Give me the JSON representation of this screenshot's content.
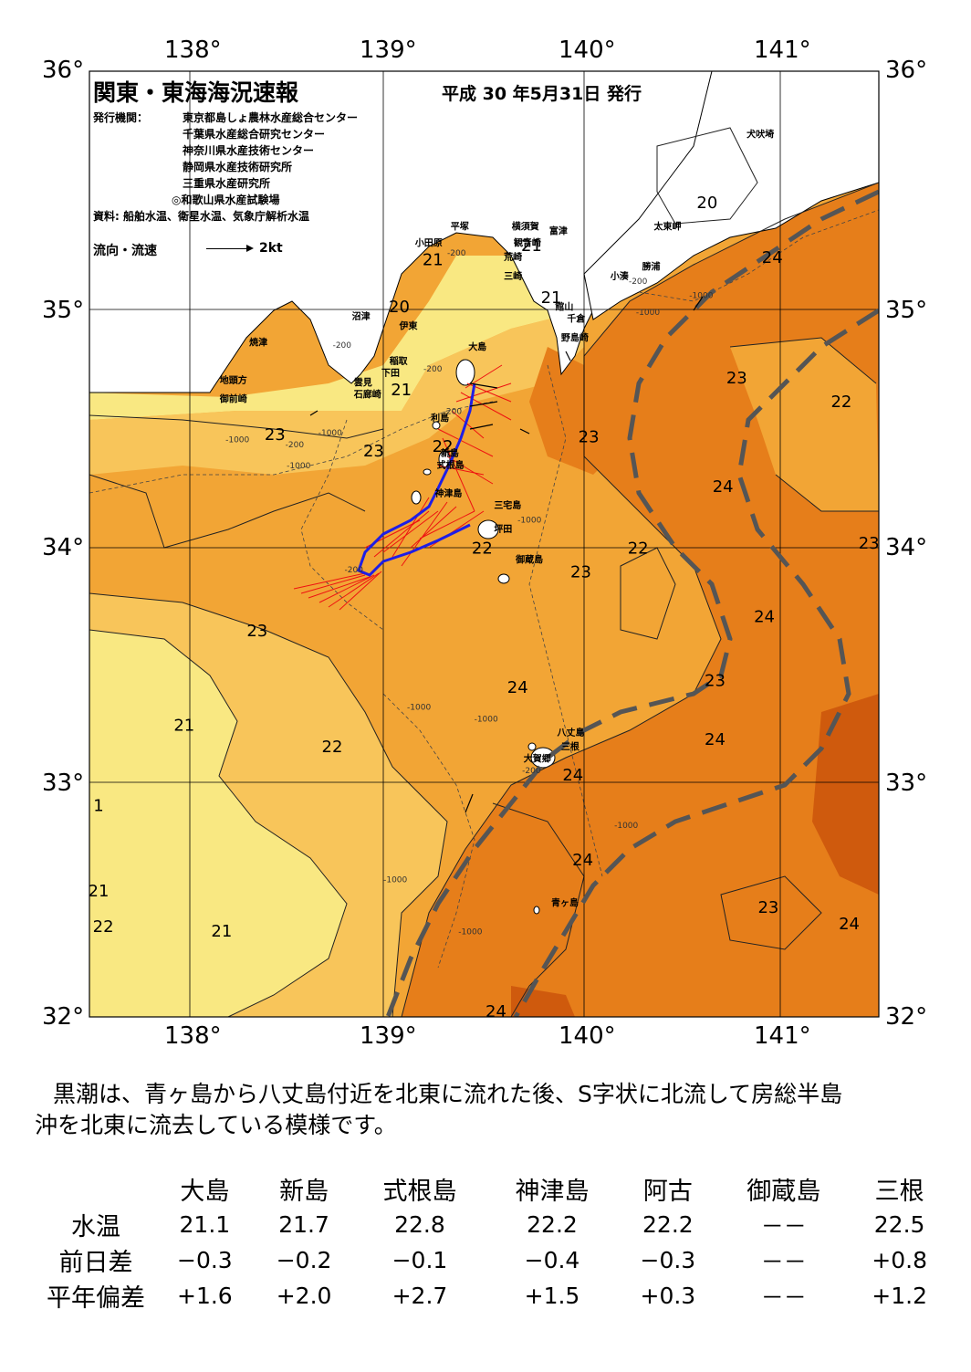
{
  "title": "関東・東海海況速報",
  "issue_date": "平成 30 年5月31日 発行",
  "issuers_label": "発行機関：",
  "issuers": [
    "東京都島しょ農林水産総合センター",
    "千葉県水産総合研究センター",
    "神奈川県水産技術センター",
    "静岡県水産技術研究所",
    "三重県水産研究所",
    "◎和歌山県水産試験場"
  ],
  "sources": "資料: 船舶水温、衛星水温、気象庁解析水温",
  "current_legend": {
    "label": "流向・流速",
    "value": "2kt"
  },
  "axes": {
    "lon_labels": [
      "138°",
      "139°",
      "140°",
      "141°"
    ],
    "lat_labels": [
      "36°",
      "35°",
      "34°",
      "33°",
      "32°"
    ]
  },
  "places": [
    {
      "name": "犬吠埼",
      "lon": 140.83,
      "lat": 35.72
    },
    {
      "name": "太東岬",
      "lon": 140.36,
      "lat": 35.33
    },
    {
      "name": "勝浦",
      "lon": 140.3,
      "lat": 35.16
    },
    {
      "name": "小湊",
      "lon": 140.14,
      "lat": 35.12
    },
    {
      "name": "富津",
      "lon": 139.83,
      "lat": 35.31
    },
    {
      "name": "平塚",
      "lon": 139.33,
      "lat": 35.33
    },
    {
      "name": "横須賀",
      "lon": 139.64,
      "lat": 35.33
    },
    {
      "name": "観音崎",
      "lon": 139.65,
      "lat": 35.26
    },
    {
      "name": "小田原",
      "lon": 139.15,
      "lat": 35.26
    },
    {
      "name": "荒崎",
      "lon": 139.6,
      "lat": 35.2
    },
    {
      "name": "三崎",
      "lon": 139.6,
      "lat": 35.12
    },
    {
      "name": "館山",
      "lon": 139.86,
      "lat": 34.99
    },
    {
      "name": "千倉",
      "lon": 139.92,
      "lat": 34.94
    },
    {
      "name": "野島崎",
      "lon": 139.89,
      "lat": 34.86
    },
    {
      "name": "沼津",
      "lon": 138.83,
      "lat": 34.95
    },
    {
      "name": "伊東",
      "lon": 139.07,
      "lat": 34.91
    },
    {
      "name": "焼津",
      "lon": 138.31,
      "lat": 34.84
    },
    {
      "name": "大島",
      "lon": 139.42,
      "lat": 34.82
    },
    {
      "name": "稲取",
      "lon": 139.02,
      "lat": 34.76
    },
    {
      "name": "下田",
      "lon": 138.98,
      "lat": 34.71
    },
    {
      "name": "雲見",
      "lon": 138.84,
      "lat": 34.67
    },
    {
      "name": "石廊崎",
      "lon": 138.84,
      "lat": 34.62
    },
    {
      "name": "地頭方",
      "lon": 138.16,
      "lat": 34.68
    },
    {
      "name": "御前崎",
      "lon": 138.16,
      "lat": 34.6
    },
    {
      "name": "利島",
      "lon": 139.23,
      "lat": 34.52
    },
    {
      "name": "新島",
      "lon": 139.28,
      "lat": 34.37
    },
    {
      "name": "式根島",
      "lon": 139.26,
      "lat": 34.32
    },
    {
      "name": "神津島",
      "lon": 139.25,
      "lat": 34.2
    },
    {
      "name": "三宅島",
      "lon": 139.55,
      "lat": 34.15
    },
    {
      "name": "坪田",
      "lon": 139.55,
      "lat": 34.05
    },
    {
      "name": "御蔵島",
      "lon": 139.66,
      "lat": 33.92
    },
    {
      "name": "八丈島",
      "lon": 139.87,
      "lat": 33.19
    },
    {
      "name": "三根",
      "lon": 139.89,
      "lat": 33.13
    },
    {
      "name": "大賀郷",
      "lon": 139.7,
      "lat": 33.08
    },
    {
      "name": "青ヶ島",
      "lon": 139.84,
      "lat": 32.47
    }
  ],
  "temperature_labels": [
    {
      "text": "21",
      "lon": 139.24,
      "lat": 35.18
    },
    {
      "text": "21",
      "lon": 139.74,
      "lat": 35.24
    },
    {
      "text": "20",
      "lon": 139.07,
      "lat": 34.98
    },
    {
      "text": "21",
      "lon": 139.84,
      "lat": 35.02
    },
    {
      "text": "20",
      "lon": 140.63,
      "lat": 35.42
    },
    {
      "text": "24",
      "lon": 140.96,
      "lat": 35.19
    },
    {
      "text": "21",
      "lon": 139.08,
      "lat": 34.63
    },
    {
      "text": "23",
      "lon": 138.44,
      "lat": 34.44
    },
    {
      "text": "23",
      "lon": 138.94,
      "lat": 34.37
    },
    {
      "text": "22",
      "lon": 139.29,
      "lat": 34.39
    },
    {
      "text": "23",
      "lon": 140.03,
      "lat": 34.43
    },
    {
      "text": "23",
      "lon": 140.78,
      "lat": 34.68
    },
    {
      "text": "22",
      "lon": 141.31,
      "lat": 34.58
    },
    {
      "text": "24",
      "lon": 140.71,
      "lat": 34.22
    },
    {
      "text": "23",
      "lon": 141.45,
      "lat": 33.98
    },
    {
      "text": "22",
      "lon": 139.49,
      "lat": 33.96
    },
    {
      "text": "22",
      "lon": 140.28,
      "lat": 33.96
    },
    {
      "text": "23",
      "lon": 139.99,
      "lat": 33.86
    },
    {
      "text": "23",
      "lon": 138.35,
      "lat": 33.61
    },
    {
      "text": "24",
      "lon": 140.92,
      "lat": 33.67
    },
    {
      "text": "24",
      "lon": 139.67,
      "lat": 33.37
    },
    {
      "text": "23",
      "lon": 140.67,
      "lat": 33.4
    },
    {
      "text": "21",
      "lon": 137.98,
      "lat": 33.21
    },
    {
      "text": "22",
      "lon": 138.73,
      "lat": 33.12
    },
    {
      "text": "24",
      "lon": 140.67,
      "lat": 33.15
    },
    {
      "text": "24",
      "lon": 139.95,
      "lat": 33.0
    },
    {
      "text": "1",
      "lon": 137.51,
      "lat": 32.87
    },
    {
      "text": "24",
      "lon": 140.0,
      "lat": 32.64
    },
    {
      "text": "21",
      "lon": 137.51,
      "lat": 32.51
    },
    {
      "text": "23",
      "lon": 140.94,
      "lat": 32.44
    },
    {
      "text": "24",
      "lon": 141.35,
      "lat": 32.37
    },
    {
      "text": "22",
      "lon": 137.57,
      "lat": 32.36
    },
    {
      "text": "21",
      "lon": 138.17,
      "lat": 32.34
    },
    {
      "text": "24",
      "lon": 139.56,
      "lat": 32.0
    }
  ],
  "depth_labels": [
    {
      "text": "-200",
      "lon": 139.36,
      "lat": 35.22
    },
    {
      "text": "-200",
      "lon": 138.78,
      "lat": 34.83
    },
    {
      "text": "-200",
      "lon": 139.24,
      "lat": 34.73
    },
    {
      "text": "-200",
      "lon": 139.34,
      "lat": 34.55
    },
    {
      "text": "-1000",
      "lon": 138.72,
      "lat": 34.46
    },
    {
      "text": "-1000",
      "lon": 138.25,
      "lat": 34.43
    },
    {
      "text": "-200",
      "lon": 138.54,
      "lat": 34.41
    },
    {
      "text": "-1000",
      "lon": 138.56,
      "lat": 34.32
    },
    {
      "text": "-1000",
      "lon": 140.33,
      "lat": 34.97
    },
    {
      "text": "-1000",
      "lon": 140.6,
      "lat": 35.04
    },
    {
      "text": "-200",
      "lon": 140.28,
      "lat": 35.1
    },
    {
      "text": "-1000",
      "lon": 139.73,
      "lat": 34.09
    },
    {
      "text": "-200",
      "lon": 138.84,
      "lat": 33.88
    },
    {
      "text": "-1000",
      "lon": 139.17,
      "lat": 33.3
    },
    {
      "text": "-1000",
      "lon": 139.51,
      "lat": 33.25
    },
    {
      "text": "-200",
      "lon": 139.74,
      "lat": 33.03
    },
    {
      "text": "-1000",
      "lon": 140.22,
      "lat": 32.8
    },
    {
      "text": "-1000",
      "lon": 139.05,
      "lat": 32.57
    },
    {
      "text": "-1000",
      "lon": 139.43,
      "lat": 32.35
    }
  ],
  "colors": {
    "t20": "#c8f07a",
    "t21": "#f9e882",
    "t22": "#f8c55a",
    "t23": "#f2a535",
    "t24": "#e67e1a",
    "t25": "#cf5a0d",
    "land": "#ffffff",
    "kuroshio_axis": "#555555",
    "track": "#1e1ee6",
    "current_vectors": "#ee1111"
  },
  "summary": [
    "黒潮は、青ヶ島から八丈島付近を北東に流れた後、S字状に北流して房総半島",
    "沖を北東に流去している模様です。"
  ],
  "stations_table": {
    "columns": [
      "大島",
      "新島",
      "式根島",
      "神津島",
      "阿古",
      "御蔵島",
      "三根"
    ],
    "rows": [
      {
        "label": "水温",
        "values": [
          "21.1",
          "21.7",
          "22.8",
          "22.2",
          "22.2",
          "－－",
          "22.5"
        ]
      },
      {
        "label": "前日差",
        "values": [
          "−0.3",
          "−0.2",
          "−0.1",
          "−0.4",
          "−0.3",
          "－－",
          "+0.8"
        ]
      },
      {
        "label": "平年偏差",
        "values": [
          "+1.6",
          "+2.0",
          "+2.7",
          "+1.5",
          "+0.3",
          "－－",
          "+1.2"
        ]
      }
    ]
  }
}
